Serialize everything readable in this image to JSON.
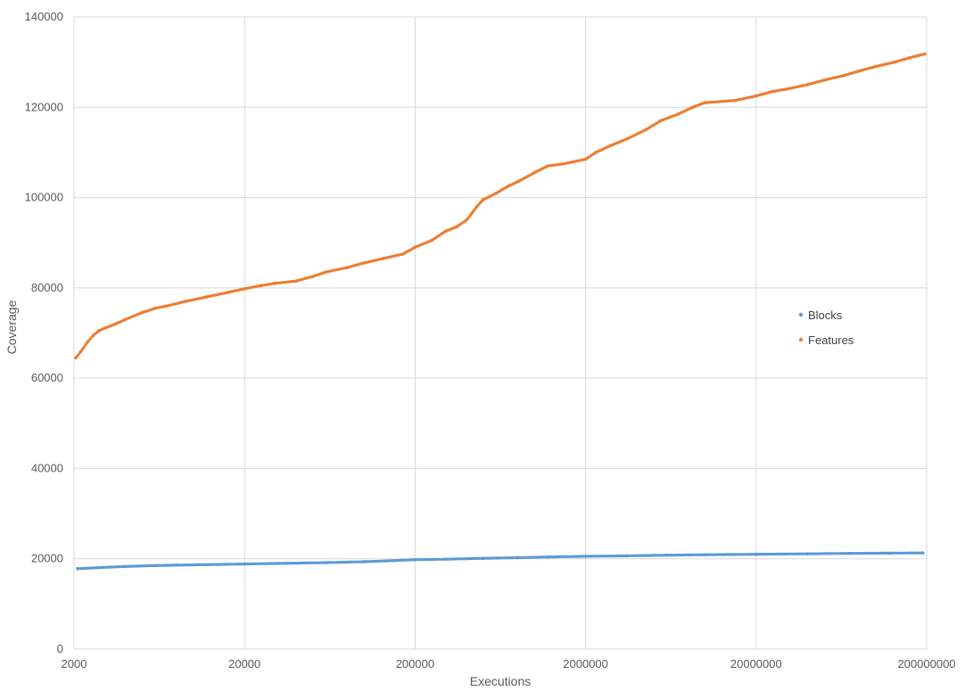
{
  "chart_data": {
    "type": "scatter",
    "title": "",
    "xlabel": "Executions",
    "ylabel": "Coverage",
    "x_scale": "log",
    "xlim": [
      2000,
      200000000
    ],
    "ylim": [
      0,
      140000
    ],
    "x_ticks": [
      "2000",
      "20000",
      "200000",
      "2000000",
      "20000000",
      "200000000"
    ],
    "y_ticks": [
      "0",
      "20000",
      "40000",
      "60000",
      "80000",
      "100000",
      "120000",
      "140000"
    ],
    "grid": true,
    "legend_position": "right",
    "series": [
      {
        "name": "Blocks",
        "color": "#5b9bd5",
        "points": [
          [
            2100,
            17800
          ],
          [
            3000,
            18100
          ],
          [
            4000,
            18300
          ],
          [
            6000,
            18500
          ],
          [
            8000,
            18600
          ],
          [
            12000,
            18700
          ],
          [
            20000,
            18850
          ],
          [
            35000,
            19000
          ],
          [
            60000,
            19150
          ],
          [
            100000,
            19350
          ],
          [
            150000,
            19600
          ],
          [
            200000,
            19800
          ],
          [
            300000,
            19900
          ],
          [
            500000,
            20100
          ],
          [
            800000,
            20250
          ],
          [
            1200000,
            20400
          ],
          [
            2000000,
            20550
          ],
          [
            3500000,
            20650
          ],
          [
            6000000,
            20800
          ],
          [
            10000000,
            20900
          ],
          [
            20000000,
            21000
          ],
          [
            40000000,
            21100
          ],
          [
            70000000,
            21200
          ],
          [
            120000000,
            21250
          ],
          [
            190000000,
            21300
          ]
        ]
      },
      {
        "name": "Features",
        "color": "#ed7d31",
        "points": [
          [
            2050,
            64500
          ],
          [
            2200,
            66000
          ],
          [
            2400,
            68000
          ],
          [
            2600,
            69500
          ],
          [
            2800,
            70500
          ],
          [
            3000,
            71000
          ],
          [
            3500,
            72000
          ],
          [
            4000,
            73000
          ],
          [
            5000,
            74500
          ],
          [
            6000,
            75500
          ],
          [
            7000,
            76000
          ],
          [
            9000,
            77000
          ],
          [
            12000,
            78000
          ],
          [
            16000,
            79000
          ],
          [
            20000,
            79800
          ],
          [
            25000,
            80500
          ],
          [
            30000,
            81000
          ],
          [
            40000,
            81500
          ],
          [
            50000,
            82500
          ],
          [
            60000,
            83500
          ],
          [
            80000,
            84500
          ],
          [
            100000,
            85500
          ],
          [
            130000,
            86500
          ],
          [
            170000,
            87500
          ],
          [
            200000,
            89000
          ],
          [
            250000,
            90500
          ],
          [
            300000,
            92500
          ],
          [
            350000,
            93500
          ],
          [
            400000,
            95000
          ],
          [
            430000,
            96500
          ],
          [
            460000,
            98000
          ],
          [
            500000,
            99500
          ],
          [
            600000,
            101000
          ],
          [
            700000,
            102500
          ],
          [
            800000,
            103500
          ],
          [
            1000000,
            105500
          ],
          [
            1200000,
            107000
          ],
          [
            1500000,
            107500
          ],
          [
            2000000,
            108500
          ],
          [
            2300000,
            110000
          ],
          [
            2800000,
            111500
          ],
          [
            3500000,
            113000
          ],
          [
            4500000,
            115000
          ],
          [
            5500000,
            117000
          ],
          [
            7000000,
            118500
          ],
          [
            8500000,
            120000
          ],
          [
            10000000,
            121000
          ],
          [
            15000000,
            121500
          ],
          [
            20000000,
            122500
          ],
          [
            25000000,
            123500
          ],
          [
            30000000,
            124000
          ],
          [
            40000000,
            125000
          ],
          [
            50000000,
            126000
          ],
          [
            65000000,
            127000
          ],
          [
            80000000,
            128000
          ],
          [
            100000000,
            129000
          ],
          [
            130000000,
            130000
          ],
          [
            160000000,
            131000
          ],
          [
            195000000,
            131800
          ]
        ]
      }
    ]
  }
}
